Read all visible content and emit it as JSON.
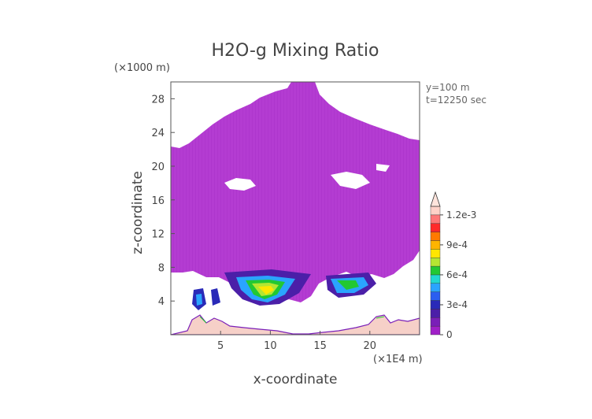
{
  "chart_data": {
    "type": "heatmap",
    "title": "H2O-g Mixing Ratio",
    "xlabel": "x-coordinate",
    "ylabel": "z-coordinate",
    "x_unit": "(×1E4 m)",
    "y_unit": "(×1000 m)",
    "annotations": [
      "y=100 m",
      "t=12250 sec"
    ],
    "xlim": [
      0,
      25
    ],
    "ylim": [
      0,
      30
    ],
    "x_ticks": [
      5,
      10,
      15,
      20
    ],
    "y_ticks": [
      4,
      8,
      12,
      16,
      20,
      24,
      28
    ],
    "colorbar": {
      "min": 0,
      "max": 0.0012,
      "tick_values": [
        0,
        0.0003,
        0.0006,
        0.0009,
        0.0012
      ],
      "tick_labels": [
        "0",
        "3e-4",
        "6e-4",
        "9e-4",
        "1.2e-3"
      ],
      "colors": [
        "#a020c8",
        "#7a1fb8",
        "#4b1fa8",
        "#2a2ab8",
        "#2b5ef0",
        "#2aa4ff",
        "#22d8d0",
        "#22c832",
        "#b4e632",
        "#ffe600",
        "#ffb400",
        "#ff7a00",
        "#ff2a2a",
        "#ff7878",
        "#ffd2c8"
      ]
    },
    "background_value_color": "#b43cd2",
    "terrain_color": "#f6d0c8"
  }
}
